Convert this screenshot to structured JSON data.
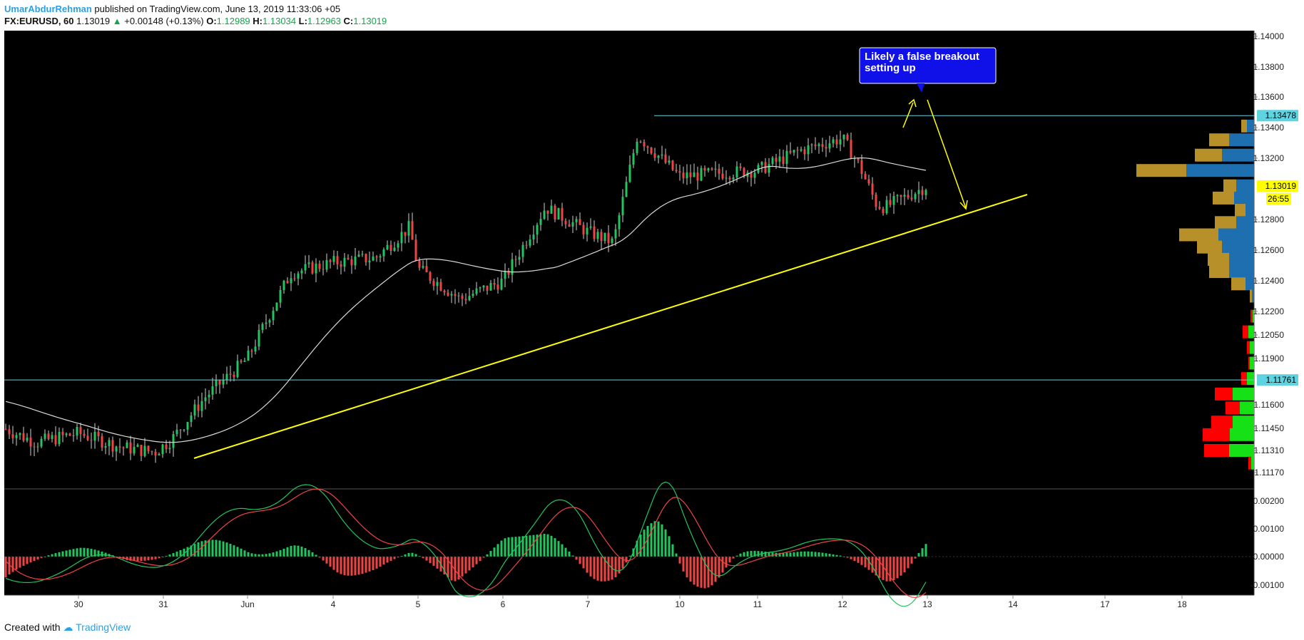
{
  "header": {
    "author": "UmarAbdurRehman",
    "published": "published on TradingView.com, June 13, 2019 11:33:06 +05",
    "symbol": "FX:EURUSD, 60",
    "last": "1.13019",
    "change": "+0.00148 (+0.13%)",
    "o_label": "O:",
    "o": "1.12989",
    "h_label": "H:",
    "h": "1.13034",
    "l_label": "L:",
    "l": "1.12963",
    "c_label": "C:",
    "c": "1.13019"
  },
  "footer": {
    "created_with": "Created with",
    "brand": "TradingView"
  },
  "colors": {
    "background": "#000000",
    "up_candle": "#22c55e",
    "down_candle": "#ef4444",
    "moving_average": "#d9d9d9",
    "trendline": "#ffff00",
    "horizontal_level": "#5fd3e0",
    "callout": "#1010e8",
    "volume_profile_up": "#1e6fb0",
    "volume_profile_down": "#b8902a",
    "volume_profile_up_low": "#16e016",
    "volume_profile_down_low": "#ff0000"
  },
  "chart_data": {
    "type": "candlestick",
    "xlabels": [
      "30",
      "31",
      "Jun",
      "4",
      "5",
      "6",
      "7",
      "10",
      "11",
      "12",
      "13",
      "14",
      "17",
      "18"
    ],
    "price_ticks": [
      "1.14000",
      "1.13800",
      "1.13600",
      "1.13400",
      "1.13200",
      "1.12800",
      "1.12600",
      "1.12400",
      "1.12200",
      "1.12050",
      "1.11900",
      "1.11600",
      "1.11450",
      "1.11310",
      "1.11170"
    ],
    "badges": [
      {
        "label": "1.13478",
        "value": 1.13478,
        "kind": "level"
      },
      {
        "label": "1.13019",
        "value": 1.13019,
        "kind": "last"
      },
      {
        "label": "26:55",
        "kind": "countdown"
      },
      {
        "label": "1.11761",
        "value": 1.11761,
        "kind": "level"
      }
    ],
    "horizontal_levels": [
      1.13478,
      1.11761
    ],
    "annotation": "Likely a false breakout setting up",
    "macd_ticks": [
      "0.00200",
      "0.00100",
      "0.00000",
      "-0.00100"
    ],
    "price_path": [
      [
        "5/29",
        1.1167
      ],
      [
        "5/29.5",
        1.1148
      ],
      [
        "5/30",
        1.1136
      ],
      [
        "5/30.5",
        1.1142
      ],
      [
        "5/31",
        1.1133
      ],
      [
        "5/31.4",
        1.113
      ],
      [
        "5/31.6",
        1.1138
      ],
      [
        "6/3",
        1.1165
      ],
      [
        "6/3.5",
        1.119
      ],
      [
        "6/4",
        1.1245
      ],
      [
        "6/4.5",
        1.1252
      ],
      [
        "6/5",
        1.1255
      ],
      [
        "6/5.4",
        1.1275
      ],
      [
        "6/5.5",
        1.1248
      ],
      [
        "6/6",
        1.1228
      ],
      [
        "6/6.5",
        1.124
      ],
      [
        "6/7",
        1.1288
      ],
      [
        "6/7.5",
        1.1272
      ],
      [
        "6/7.8",
        1.1265
      ],
      [
        "6/10",
        1.1335
      ],
      [
        "6/10.5",
        1.1308
      ],
      [
        "6/11",
        1.131
      ],
      [
        "6/11.5",
        1.1312
      ],
      [
        "6/12",
        1.1325
      ],
      [
        "6/12.5",
        1.1333
      ],
      [
        "6/12.7",
        1.1315
      ],
      [
        "6/12.9",
        1.129
      ],
      [
        "6/13",
        1.1288
      ],
      [
        "6/13.5",
        1.1302
      ]
    ]
  }
}
